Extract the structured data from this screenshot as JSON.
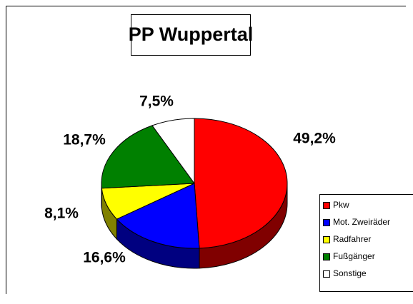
{
  "chart_data": {
    "type": "pie",
    "title": "PP Wuppertal",
    "categories": [
      "Pkw",
      "Mot. Zweiräder",
      "Radfahrer",
      "Fußgänger",
      "Sonstige"
    ],
    "values": [
      49.2,
      16.6,
      8.1,
      18.7,
      7.5
    ],
    "value_labels": [
      "49,2%",
      "16,6%",
      "8,1%",
      "18,7%",
      "7,5%"
    ],
    "colors": [
      "#ff0000",
      "#0000ff",
      "#ffff00",
      "#008000",
      "#ffffff"
    ],
    "legend": "right"
  }
}
